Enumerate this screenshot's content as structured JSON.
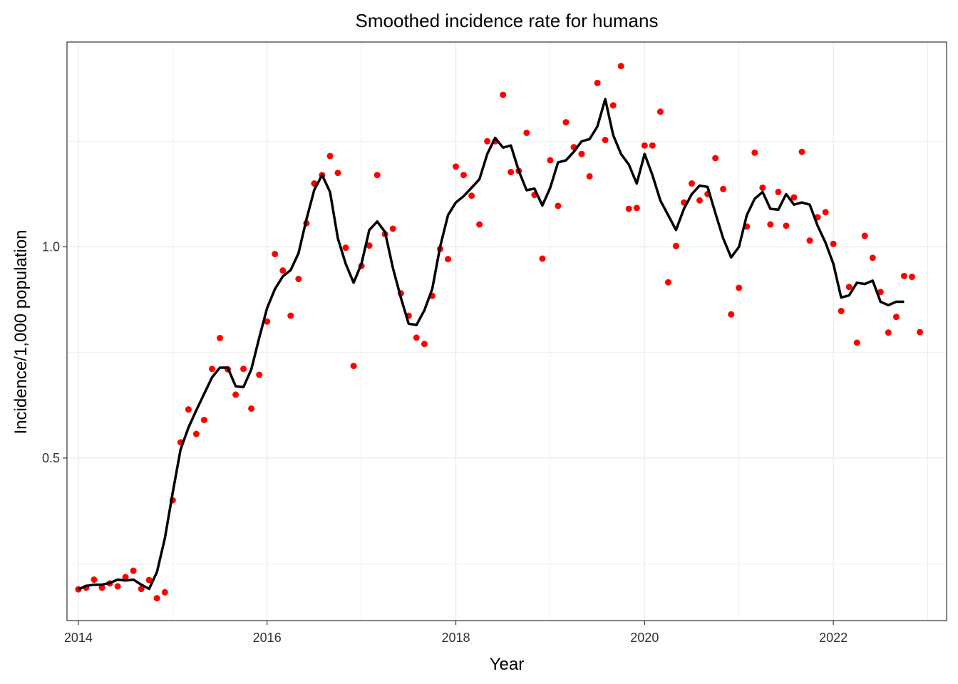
{
  "chart_data": {
    "type": "line",
    "title": "Smoothed incidence rate for humans",
    "xlabel": "Year",
    "ylabel": "Incidence/1,000 population",
    "xlim": [
      2013.88,
      2023.2
    ],
    "ylim": [
      0.115,
      1.485
    ],
    "x_ticks": [
      2014,
      2016,
      2018,
      2020,
      2022
    ],
    "x_tick_labels": [
      "2014",
      "2016",
      "2018",
      "2020",
      "2022"
    ],
    "y_ticks": [
      0.5,
      1.0
    ],
    "y_tick_labels": [
      "0.5",
      "1.0"
    ],
    "grid": true,
    "legend": "none",
    "colors": {
      "points": "#ff0000",
      "line": "#000000",
      "grid": "#ebebeb",
      "panel_border": "#333333"
    },
    "series": [
      {
        "kind": "points",
        "x": [
          2014.0,
          2014.083,
          2014.167,
          2014.25,
          2014.333,
          2014.417,
          2014.5,
          2014.583,
          2014.667,
          2014.75,
          2014.833,
          2014.917,
          2015.0,
          2015.083,
          2015.167,
          2015.25,
          2015.333,
          2015.417,
          2015.5,
          2015.583,
          2015.667,
          2015.75,
          2015.833,
          2015.917,
          2016.0,
          2016.083,
          2016.167,
          2016.25,
          2016.333,
          2016.417,
          2016.5,
          2016.583,
          2016.667,
          2016.75,
          2016.833,
          2016.917,
          2017.0,
          2017.083,
          2017.167,
          2017.25,
          2017.333,
          2017.417,
          2017.5,
          2017.583,
          2017.667,
          2017.75,
          2017.833,
          2017.917,
          2018.0,
          2018.083,
          2018.167,
          2018.25,
          2018.333,
          2018.417,
          2018.5,
          2018.583,
          2018.667,
          2018.75,
          2018.833,
          2018.917,
          2019.0,
          2019.083,
          2019.167,
          2019.25,
          2019.333,
          2019.417,
          2019.5,
          2019.583,
          2019.667,
          2019.75,
          2019.833,
          2019.917,
          2020.0,
          2020.083,
          2020.167,
          2020.25,
          2020.333,
          2020.417,
          2020.5,
          2020.583,
          2020.667,
          2020.75,
          2020.833,
          2020.917,
          2021.0,
          2021.083,
          2021.167,
          2021.25,
          2021.333,
          2021.417,
          2021.5,
          2021.583,
          2021.667,
          2021.75,
          2021.833,
          2021.917,
          2022.0,
          2022.083,
          2022.167,
          2022.25,
          2022.333,
          2022.417,
          2022.5,
          2022.583,
          2022.667,
          2022.75,
          2022.833,
          2022.917
        ],
        "y": [
          0.189,
          0.193,
          0.212,
          0.193,
          0.203,
          0.196,
          0.218,
          0.233,
          0.19,
          0.211,
          0.168,
          0.182,
          0.4,
          0.537,
          0.615,
          0.557,
          0.59,
          0.711,
          0.784,
          0.71,
          0.65,
          0.711,
          0.617,
          0.697,
          0.823,
          0.983,
          0.944,
          0.837,
          0.924,
          1.056,
          1.15,
          1.17,
          1.215,
          1.175,
          0.998,
          0.718,
          0.955,
          1.003,
          1.17,
          1.03,
          1.043,
          0.89,
          0.837,
          0.785,
          0.77,
          0.884,
          0.995,
          0.971,
          1.19,
          1.17,
          1.121,
          1.053,
          1.25,
          1.25,
          1.36,
          1.177,
          1.18,
          1.27,
          1.123,
          0.972,
          1.205,
          1.097,
          1.295,
          1.236,
          1.22,
          1.167,
          1.388,
          1.253,
          1.335,
          1.428,
          1.09,
          1.092,
          1.24,
          1.24,
          1.32,
          0.916,
          1.002,
          1.105,
          1.15,
          1.11,
          1.125,
          1.21,
          1.137,
          0.84,
          0.903,
          1.048,
          1.223,
          1.14,
          1.053,
          1.13,
          1.05,
          1.117,
          1.225,
          1.015,
          1.07,
          1.082,
          1.007,
          0.848,
          0.905,
          0.773,
          1.026,
          0.974,
          0.893,
          0.797,
          0.834,
          0.931,
          0.929,
          0.798
        ]
      },
      {
        "kind": "line",
        "x": [
          2014.0,
          2014.083,
          2014.167,
          2014.25,
          2014.333,
          2014.417,
          2014.5,
          2014.583,
          2014.667,
          2014.75,
          2014.833,
          2014.917,
          2015.0,
          2015.083,
          2015.167,
          2015.25,
          2015.333,
          2015.417,
          2015.5,
          2015.583,
          2015.667,
          2015.75,
          2015.833,
          2015.917,
          2016.0,
          2016.083,
          2016.167,
          2016.25,
          2016.333,
          2016.417,
          2016.5,
          2016.583,
          2016.667,
          2016.75,
          2016.833,
          2016.917,
          2017.0,
          2017.083,
          2017.167,
          2017.25,
          2017.333,
          2017.417,
          2017.5,
          2017.583,
          2017.667,
          2017.75,
          2017.833,
          2017.917,
          2018.0,
          2018.083,
          2018.167,
          2018.25,
          2018.333,
          2018.417,
          2018.5,
          2018.583,
          2018.667,
          2018.75,
          2018.833,
          2018.917,
          2019.0,
          2019.083,
          2019.167,
          2019.25,
          2019.333,
          2019.417,
          2019.5,
          2019.583,
          2019.667,
          2019.75,
          2019.833,
          2019.917,
          2020.0,
          2020.083,
          2020.167,
          2020.25,
          2020.333,
          2020.417,
          2020.5,
          2020.583,
          2020.667,
          2020.75,
          2020.833,
          2020.917,
          2021.0,
          2021.083,
          2021.167,
          2021.25,
          2021.333,
          2021.417,
          2021.5,
          2021.583,
          2021.667,
          2021.75,
          2021.833,
          2021.917,
          2022.0,
          2022.083,
          2022.167,
          2022.25,
          2022.333,
          2022.417,
          2022.5,
          2022.583,
          2022.667,
          2022.75
        ],
        "y": [
          0.189,
          0.197,
          0.2,
          0.2,
          0.204,
          0.212,
          0.21,
          0.212,
          0.2,
          0.19,
          0.23,
          0.31,
          0.418,
          0.52,
          0.572,
          0.613,
          0.652,
          0.691,
          0.714,
          0.714,
          0.67,
          0.668,
          0.71,
          0.785,
          0.855,
          0.9,
          0.93,
          0.945,
          0.985,
          1.065,
          1.135,
          1.17,
          1.13,
          1.02,
          0.96,
          0.915,
          0.96,
          1.04,
          1.06,
          1.035,
          0.95,
          0.88,
          0.818,
          0.815,
          0.85,
          0.9,
          1.0,
          1.075,
          1.105,
          1.12,
          1.14,
          1.16,
          1.22,
          1.258,
          1.235,
          1.24,
          1.18,
          1.134,
          1.138,
          1.098,
          1.14,
          1.2,
          1.205,
          1.225,
          1.25,
          1.255,
          1.285,
          1.35,
          1.265,
          1.22,
          1.195,
          1.15,
          1.22,
          1.17,
          1.11,
          1.075,
          1.04,
          1.09,
          1.125,
          1.145,
          1.142,
          1.08,
          1.02,
          0.975,
          1.0,
          1.075,
          1.114,
          1.13,
          1.09,
          1.088,
          1.125,
          1.1,
          1.105,
          1.1,
          1.05,
          1.01,
          0.96,
          0.88,
          0.885,
          0.915,
          0.912,
          0.92,
          0.87,
          0.862,
          0.87,
          0.87
        ]
      }
    ]
  }
}
